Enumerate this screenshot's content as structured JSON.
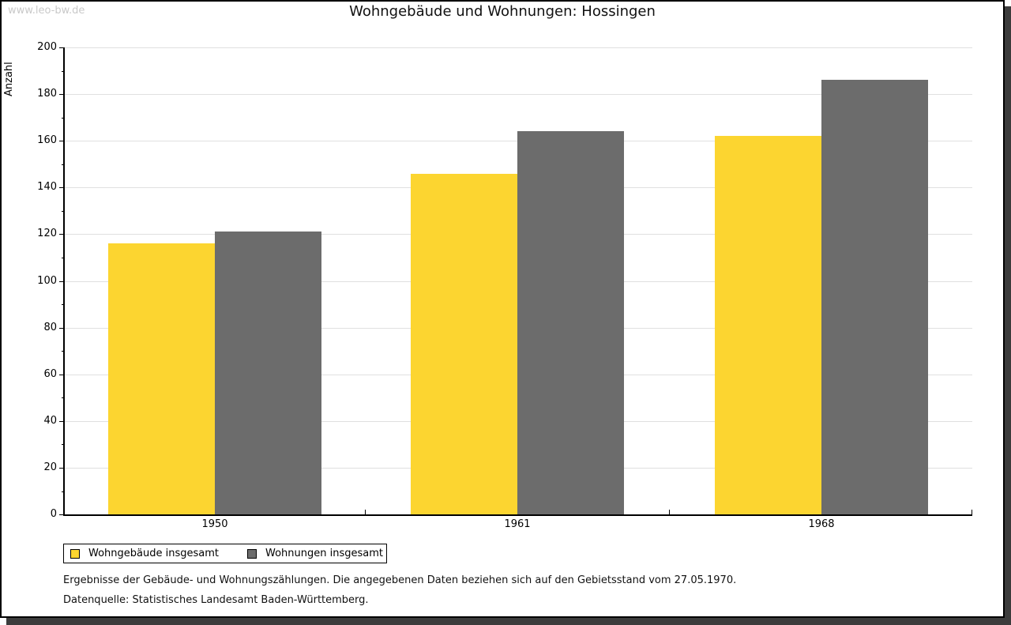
{
  "page": {
    "watermark": "www.leo-bw.de",
    "background": "#ffffff",
    "border_color": "#000000",
    "shadow_color": "#3c3c3c"
  },
  "chart_data": {
    "type": "bar",
    "title": "Wohngebäude und Wohnungen: Hossingen",
    "ylabel": "Anzahl",
    "xlabel": "",
    "ylim": [
      0,
      200
    ],
    "ytick_step": 20,
    "ytick_minor_step": 10,
    "grid": true,
    "legend_position": "bottom-left",
    "categories": [
      "1950",
      "1961",
      "1968"
    ],
    "series": [
      {
        "name": "Wohngebäude insgesamt",
        "color": "#fcd530",
        "values": [
          116,
          146,
          162
        ]
      },
      {
        "name": "Wohnungen insgesamt",
        "color": "#6c6c6c",
        "values": [
          121,
          164,
          186
        ]
      }
    ]
  },
  "footer": {
    "line1": "Ergebnisse der Gebäude- und Wohnungszählungen. Die angegebenen Daten beziehen sich auf den Gebietsstand vom 27.05.1970.",
    "line2": "Datenquelle: Statistisches Landesamt Baden-Württemberg."
  }
}
